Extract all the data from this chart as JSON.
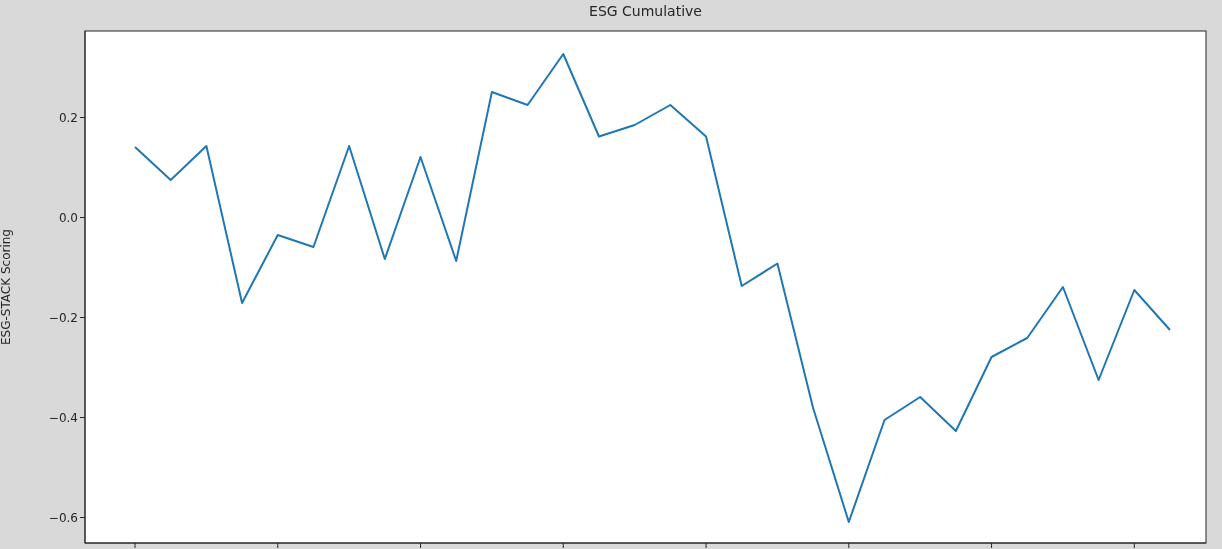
{
  "chart_data": {
    "type": "line",
    "title": "ESG Cumulative",
    "ylabel": "ESG-STACK Scoring",
    "categories": [
      null,
      null,
      null,
      null,
      null,
      null,
      null,
      null,
      null,
      null,
      null,
      null,
      null,
      null,
      null,
      null,
      null,
      null,
      null,
      null,
      null,
      null,
      null,
      null,
      null,
      null,
      null,
      null,
      null,
      null
    ],
    "series": [
      {
        "color": "#1f77b4",
        "values": [
          0.141,
          0.075,
          0.143,
          -0.171,
          -0.035,
          -0.059,
          0.143,
          -0.083,
          0.121,
          -0.087,
          0.251,
          0.225,
          0.327,
          0.162,
          0.185,
          0.225,
          0.162,
          -0.137,
          -0.092,
          -0.381,
          -0.609,
          -0.405,
          -0.359,
          -0.427,
          -0.279,
          -0.241,
          -0.139,
          -0.325,
          -0.145,
          -0.225
        ]
      }
    ],
    "ylim": [
      -0.651,
      0.373
    ],
    "yticks": [
      {
        "value": -0.6,
        "label": "−0.6"
      },
      {
        "value": -0.4,
        "label": "−0.4"
      },
      {
        "value": -0.2,
        "label": "−0.2"
      },
      {
        "value": 0,
        "label": "0.0"
      },
      {
        "value": 0.2,
        "label": "0.2"
      }
    ],
    "tick_labels": "y",
    "legend": false,
    "marker": "none",
    "line_style": "solid"
  }
}
